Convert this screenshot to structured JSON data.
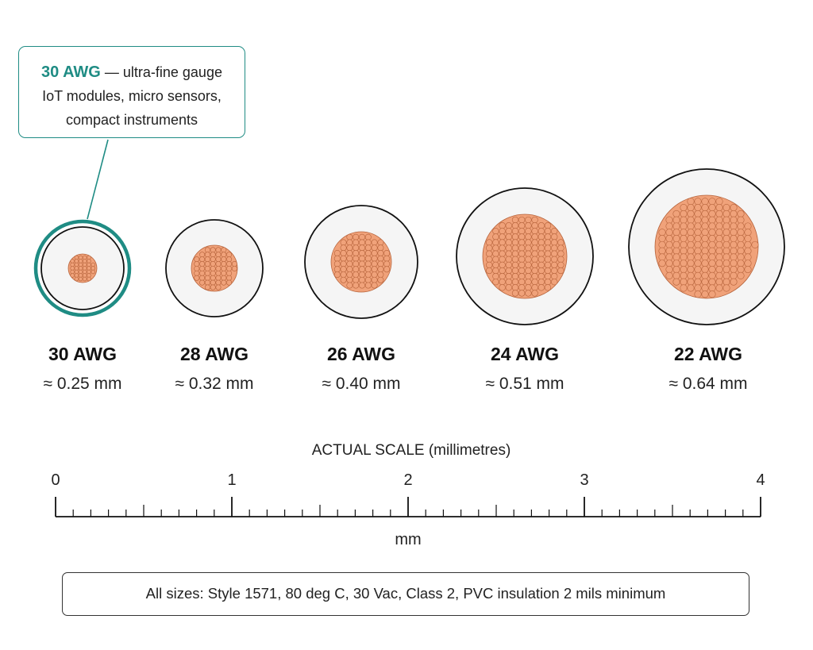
{
  "callout": {
    "gauge": "30 AWG",
    "title_rest": " — ultra-fine gauge",
    "line1": "IoT modules, micro sensors,",
    "line2": "compact instruments"
  },
  "gauges": [
    {
      "name": "30 AWG",
      "diameter": "≈ 0.25 mm",
      "highlighted": true
    },
    {
      "name": "28 AWG",
      "diameter": "≈ 0.32 mm",
      "highlighted": false
    },
    {
      "name": "26 AWG",
      "diameter": "≈ 0.40 mm",
      "highlighted": false
    },
    {
      "name": "24 AWG",
      "diameter": "≈ 0.51 mm",
      "highlighted": false
    },
    {
      "name": "22 AWG",
      "diameter": "≈ 0.64 mm",
      "highlighted": false
    }
  ],
  "scale": {
    "title": "ACTUAL SCALE (millimetres)",
    "ticks": [
      "0",
      "1",
      "2",
      "3",
      "4"
    ],
    "unit": "mm"
  },
  "footnote": "All sizes: Style 1571, 80 deg C, 30 Vac, Class 2, PVC insulation 2 mils minimum",
  "colors": {
    "accent": "#1f8c84",
    "copper": "#f0a27a",
    "copper_stroke": "#b5623a",
    "insulation": "#f5f5f5"
  }
}
